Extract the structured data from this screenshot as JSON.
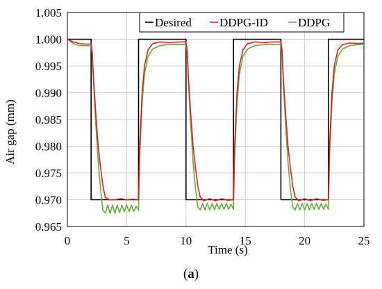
{
  "chart_data": {
    "type": "line",
    "xlabel": "Time (s)",
    "ylabel": "Air gap (mm)",
    "xlim": [
      0,
      25
    ],
    "ylim": [
      0.965,
      1.005
    ],
    "xticks": [
      "0",
      "5",
      "10",
      "15",
      "20",
      "25"
    ],
    "yticks": [
      "0.965",
      "0.970",
      "0.975",
      "0.980",
      "0.985",
      "0.990",
      "0.995",
      "1.000",
      "1.005"
    ],
    "grid": true,
    "legend_position": "top-right",
    "series": [
      {
        "name": "Desired",
        "color": "#000000",
        "style": "step",
        "x": [
          0,
          2,
          2,
          6,
          6,
          10,
          10,
          14,
          14,
          18,
          18,
          22,
          22,
          25
        ],
        "y": [
          1.0,
          1.0,
          0.97,
          0.97,
          1.0,
          1.0,
          0.97,
          0.97,
          1.0,
          1.0,
          0.97,
          0.97,
          1.0,
          1.0
        ]
      },
      {
        "name": "DDPG-ID",
        "color": "#e02020",
        "x": [
          0,
          0.5,
          1.0,
          1.5,
          2.0,
          2.1,
          2.2,
          2.4,
          2.6,
          2.8,
          3.0,
          3.2,
          3.5,
          4.0,
          4.5,
          5.0,
          5.5,
          6.0,
          6.1,
          6.3,
          6.5,
          6.8,
          7.2,
          7.8,
          8.5,
          9.5,
          10.0,
          10.1,
          10.2,
          10.4,
          10.6,
          10.8,
          11.0,
          11.2,
          11.5,
          12.0,
          12.5,
          13.0,
          13.5,
          14.0,
          14.1,
          14.3,
          14.5,
          14.8,
          15.2,
          15.8,
          16.5,
          17.5,
          18.0,
          18.1,
          18.2,
          18.4,
          18.6,
          18.8,
          19.0,
          19.2,
          19.5,
          20.0,
          20.5,
          21.0,
          21.5,
          22.0,
          22.1,
          22.3,
          22.5,
          22.8,
          23.2,
          23.8,
          24.5,
          25.0
        ],
        "y": [
          1.0,
          0.9995,
          0.9992,
          0.9991,
          0.9991,
          0.9975,
          0.993,
          0.986,
          0.98,
          0.976,
          0.9725,
          0.9705,
          0.97,
          0.97,
          0.9702,
          0.97,
          0.9701,
          0.97,
          0.98,
          0.99,
          0.995,
          0.998,
          0.9992,
          0.9995,
          0.9994,
          0.9995,
          0.9995,
          0.998,
          0.993,
          0.986,
          0.98,
          0.976,
          0.9725,
          0.9705,
          0.9698,
          0.9702,
          0.9698,
          0.9702,
          0.9699,
          0.97,
          0.98,
          0.99,
          0.995,
          0.998,
          0.9992,
          0.9995,
          0.9994,
          0.9995,
          0.9995,
          0.998,
          0.993,
          0.986,
          0.98,
          0.976,
          0.9725,
          0.9705,
          0.9698,
          0.9702,
          0.9698,
          0.9702,
          0.9699,
          0.97,
          0.98,
          0.99,
          0.995,
          0.998,
          0.999,
          0.9993,
          0.9992,
          0.9993
        ]
      },
      {
        "name": "DDPG",
        "color": "#5fad3a",
        "x": [
          0,
          0.5,
          1.0,
          1.5,
          2.0,
          2.1,
          2.2,
          2.4,
          2.6,
          2.8,
          3.0,
          3.2,
          3.4,
          3.6,
          3.8,
          4.0,
          4.2,
          4.4,
          4.6,
          4.8,
          5.0,
          5.2,
          5.4,
          5.6,
          5.8,
          6.0,
          6.1,
          6.3,
          6.5,
          6.8,
          7.2,
          7.8,
          8.5,
          9.5,
          10.0,
          10.1,
          10.2,
          10.4,
          10.6,
          10.8,
          11.0,
          11.2,
          11.4,
          11.6,
          11.8,
          12.0,
          12.2,
          12.4,
          12.6,
          12.8,
          13.0,
          13.2,
          13.4,
          13.6,
          13.8,
          14.0,
          14.1,
          14.3,
          14.5,
          14.8,
          15.2,
          15.8,
          16.5,
          17.5,
          18.0,
          18.1,
          18.2,
          18.4,
          18.6,
          18.8,
          19.0,
          19.2,
          19.4,
          19.6,
          19.8,
          20.0,
          20.2,
          20.4,
          20.6,
          20.8,
          21.0,
          21.2,
          21.4,
          21.6,
          21.8,
          22.0,
          22.1,
          22.3,
          22.5,
          22.8,
          23.2,
          23.8,
          24.5,
          25.0
        ],
        "y": [
          1.0,
          0.9992,
          0.9988,
          0.9988,
          0.9988,
          0.997,
          0.992,
          0.984,
          0.977,
          0.972,
          0.968,
          0.9675,
          0.969,
          0.9674,
          0.969,
          0.9675,
          0.969,
          0.9676,
          0.969,
          0.9678,
          0.969,
          0.9678,
          0.969,
          0.9678,
          0.9688,
          0.968,
          0.978,
          0.988,
          0.9935,
          0.9968,
          0.9982,
          0.9988,
          0.999,
          0.999,
          0.999,
          0.9972,
          0.992,
          0.984,
          0.977,
          0.972,
          0.9686,
          0.9681,
          0.9693,
          0.9681,
          0.9693,
          0.9681,
          0.9693,
          0.9681,
          0.9693,
          0.9682,
          0.9693,
          0.9682,
          0.9693,
          0.9682,
          0.9692,
          0.9682,
          0.978,
          0.988,
          0.9935,
          0.9968,
          0.9982,
          0.9988,
          0.999,
          0.999,
          0.999,
          0.9972,
          0.992,
          0.984,
          0.977,
          0.972,
          0.9686,
          0.9681,
          0.9693,
          0.9681,
          0.9693,
          0.9681,
          0.9693,
          0.9681,
          0.9693,
          0.9682,
          0.9693,
          0.9682,
          0.9693,
          0.9682,
          0.9692,
          0.9682,
          0.978,
          0.988,
          0.9935,
          0.9968,
          0.9982,
          0.9988,
          0.999,
          0.999
        ]
      }
    ]
  },
  "caption": {
    "open": "(",
    "letter": "a",
    "close": ")"
  }
}
